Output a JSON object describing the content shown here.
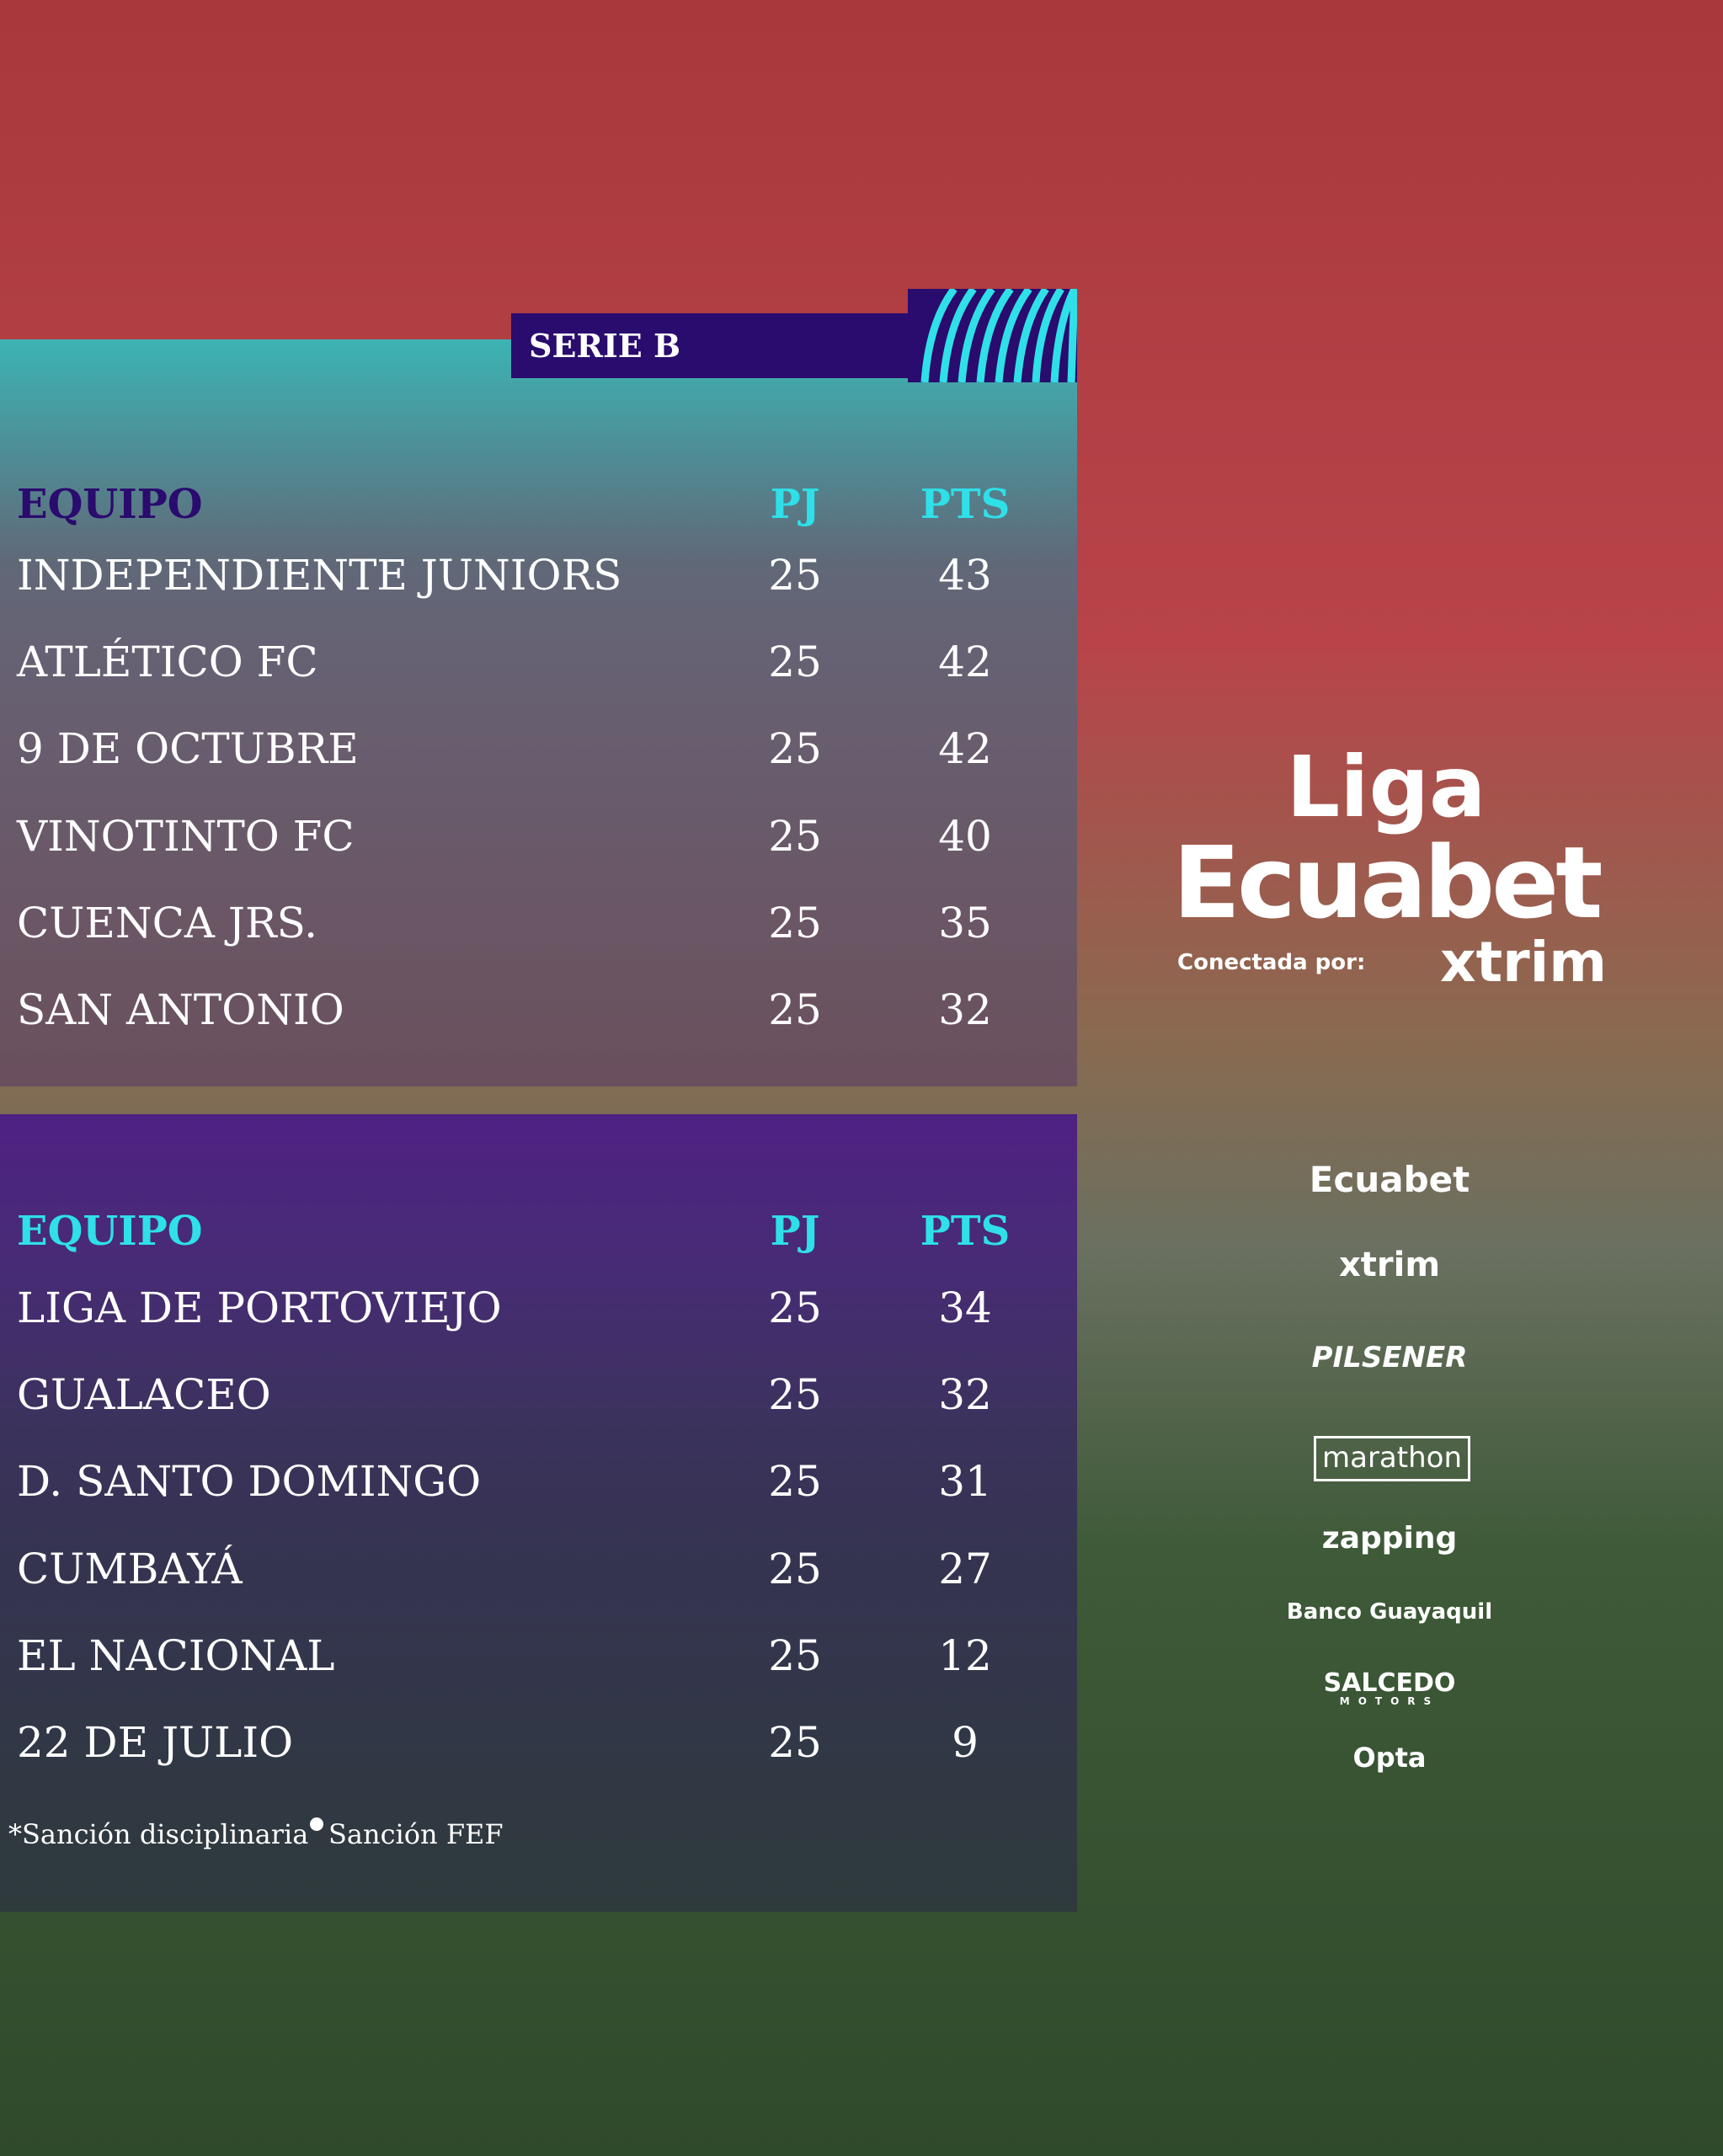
{
  "header": {
    "title": "SERIE B"
  },
  "tables": [
    {
      "columns": [
        "EQUIPO",
        "PJ",
        "PTS"
      ],
      "rows": [
        [
          "INDEPENDIENTE JUNIORS",
          25,
          43
        ],
        [
          "ATLÉTICO FC",
          25,
          42
        ],
        [
          "9 DE OCTUBRE",
          25,
          42
        ],
        [
          "VINOTINTO FC",
          25,
          40
        ],
        [
          "CUENCA JRS.",
          25,
          35
        ],
        [
          "SAN ANTONIO",
          25,
          32
        ]
      ]
    },
    {
      "columns": [
        "EQUIPO",
        "PJ",
        "PTS"
      ],
      "rows": [
        [
          "LIGA DE PORTOVIEJO",
          25,
          34
        ],
        [
          "GUALACEO",
          25,
          32
        ],
        [
          "D. SANTO DOMINGO",
          25,
          31
        ],
        [
          "CUMBAYÁ",
          25,
          27
        ],
        [
          "EL NACIONAL",
          25,
          12
        ],
        [
          "22 DE JULIO",
          25,
          9
        ]
      ]
    }
  ],
  "footnotes": [
    "*Sanción disciplinaria",
    "Sanción FEF"
  ],
  "brand": {
    "line1": "Liga",
    "line2": "Ecuabet",
    "tagline": "Conectada por:",
    "partner": "xtrim"
  },
  "sponsors": [
    {
      "label": "Ecuabet"
    },
    {
      "label": "xtrim"
    },
    {
      "label": "PILSENER"
    },
    {
      "label": "marathon"
    },
    {
      "label": "zapping"
    },
    {
      "label": "Banco Guayaquil"
    },
    {
      "label": "SALCEDO",
      "sub": "MOTORS"
    },
    {
      "label": "Opta"
    }
  ]
}
